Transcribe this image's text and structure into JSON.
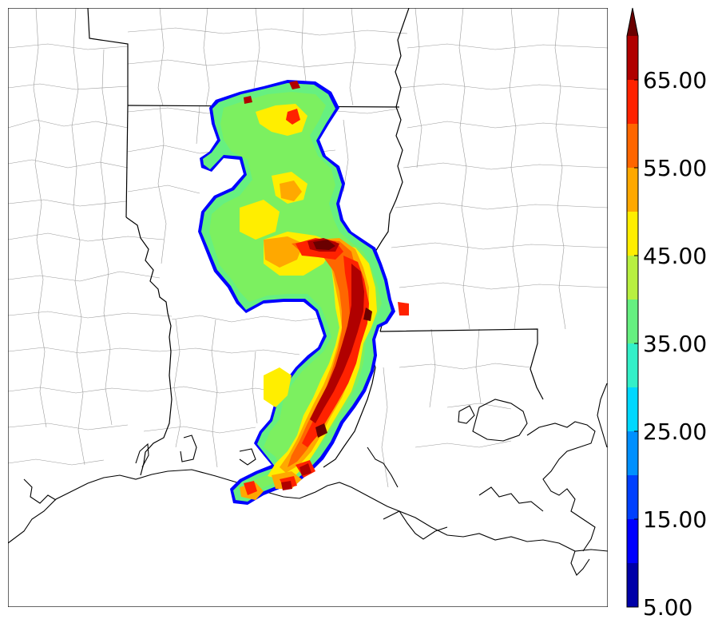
{
  "map": {
    "type": "radar-reflectivity",
    "levels": [
      5,
      10,
      15,
      20,
      25,
      30,
      35,
      40,
      45,
      50,
      55,
      60,
      65,
      70
    ],
    "colors": [
      "#0000a8",
      "#0000ff",
      "#0040ff",
      "#0090ff",
      "#00d8ff",
      "#33f0c8",
      "#66f080",
      "#b8f040",
      "#ffee00",
      "#ffa800",
      "#ff6600",
      "#ff2200",
      "#b00000"
    ],
    "extend_color": "#6a0000",
    "extend": "max"
  },
  "colorbar": {
    "tick_labels": [
      {
        "label": "5.00",
        "value": 5
      },
      {
        "label": "15.00",
        "value": 15
      },
      {
        "label": "25.00",
        "value": 25
      },
      {
        "label": "35.00",
        "value": 35
      },
      {
        "label": "45.00",
        "value": 45
      },
      {
        "label": "55.00",
        "value": 55
      },
      {
        "label": "65.00",
        "value": 65
      }
    ]
  }
}
